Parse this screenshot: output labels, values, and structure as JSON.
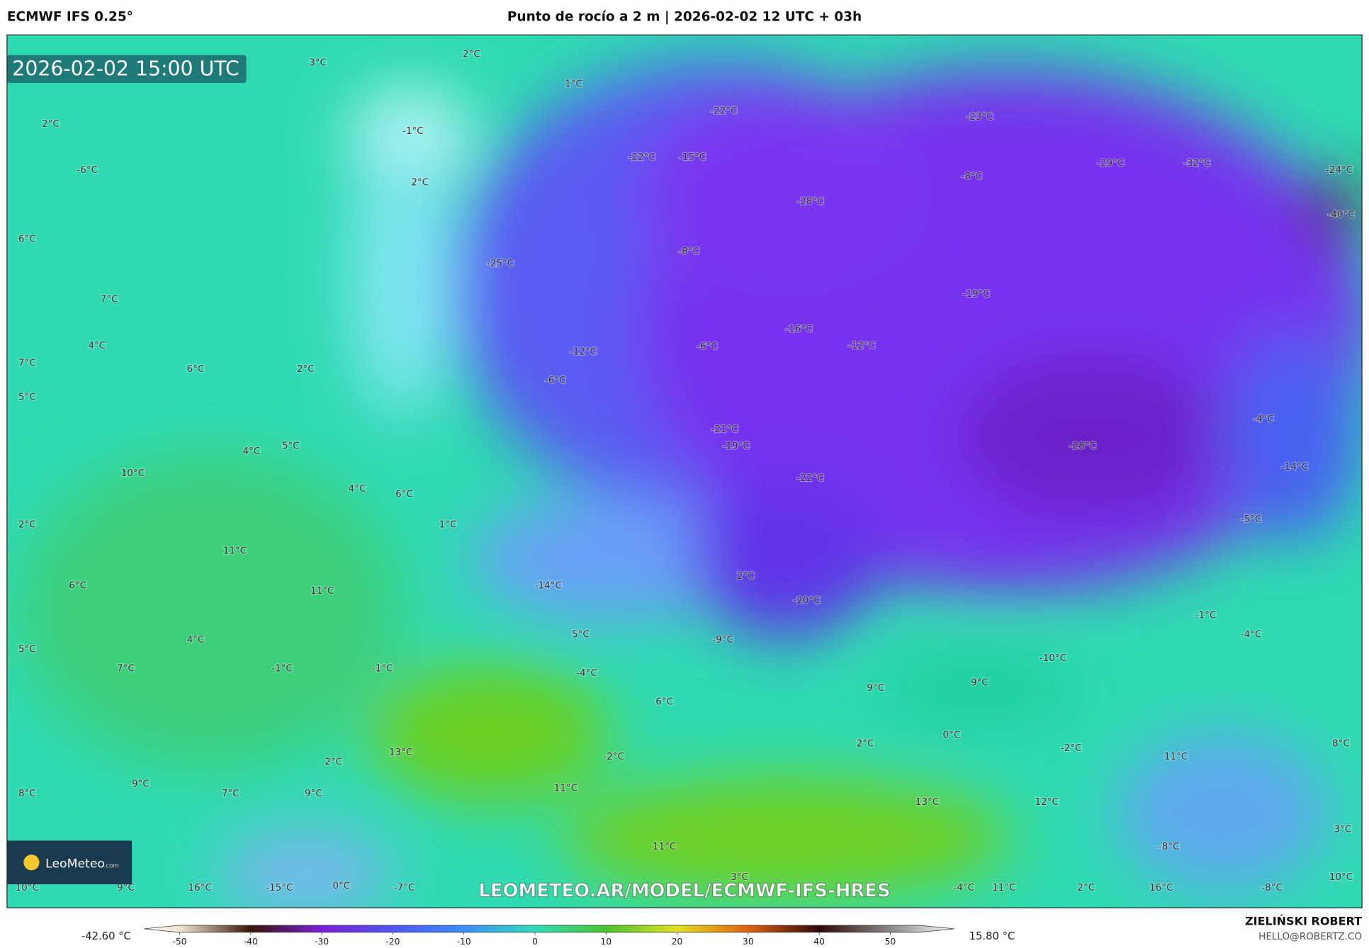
{
  "header": {
    "model": "ECMWF IFS 0.25°",
    "title": "Punto de rocío a 2 m | 2026-02-02 12 UTC + 03h"
  },
  "map": {
    "timestamp": "2026-02-02 15:00 UTC",
    "watermark": "LEOMETEO.AR/MODEL/ECMWF-IFS-HRES",
    "logo": "LeoMeteo",
    "logo_suffix": ".com",
    "labels": [
      "3°C",
      "2°C",
      "1°C",
      "-22°C",
      "-23°C",
      "2°C",
      "-1°C",
      "-6°C",
      "-22°C",
      "-15°C",
      "-29°C",
      "-32°C",
      "-24°C",
      "2°C",
      "-8°C",
      "-28°C",
      "-40°C",
      "6°C",
      "-8°C",
      "-25°C",
      "-19°C",
      "7°C",
      "-16°C",
      "4°C",
      "-12°C",
      "-12°C",
      "-6°C",
      "7°C",
      "6°C",
      "2°C",
      "-6°C",
      "5°C",
      "-4°C",
      "-21°C",
      "-19°C",
      "-28°C",
      "4°C",
      "5°C",
      "10°C",
      "-14°C",
      "-22°C",
      "4°C",
      "6°C",
      "2°C",
      "1°C",
      "-5°C",
      "11°C",
      "-14°C",
      "2°C",
      "6°C",
      "11°C",
      "-20°C",
      "-1°C",
      "4°C",
      "5°C",
      "-4°C",
      "-9°C",
      "5°C",
      "-10°C",
      "-1°C",
      "-1°C",
      "7°C",
      "-4°C",
      "9°C",
      "9°C",
      "6°C",
      "0°C",
      "2°C",
      "-2°C",
      "8°C",
      "13°C",
      "11°C",
      "-2°C",
      "2°C",
      "9°C",
      "8°C",
      "7°C",
      "9°C",
      "11°C",
      "13°C",
      "12°C",
      "3°C",
      "-8°C",
      "11°C",
      "3°C",
      "10°C",
      "10°C",
      "9°C",
      "16°C",
      "-15°C",
      "0°C",
      "-7°C",
      "-4°C",
      "11°C",
      "2°C",
      "16°C",
      "-8°C"
    ]
  },
  "colorbar": {
    "min_label": "-42.60 °C",
    "max_label": "15.80 °C",
    "lim": [
      -55,
      59
    ],
    "ticks": [
      -50,
      -40,
      -30,
      -20,
      -10,
      0,
      10,
      20,
      30,
      40,
      50
    ]
  },
  "footer": {
    "author": "ZIELIŃSKI ROBERT",
    "email": "HELLO@ROBERTZ.CO"
  }
}
